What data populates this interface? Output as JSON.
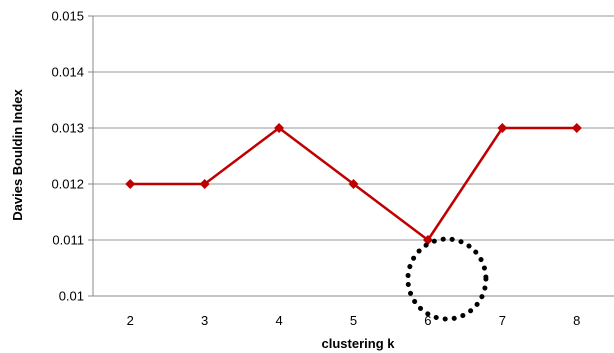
{
  "chart_data": {
    "type": "line",
    "title": "",
    "xlabel": "clustering k",
    "ylabel": "Davies Bouldin Index",
    "categories": [
      "2",
      "3",
      "4",
      "5",
      "6",
      "7",
      "8"
    ],
    "series": [
      {
        "values": [
          0.012,
          0.012,
          0.013,
          0.012,
          0.011,
          0.013,
          0.013
        ],
        "color": "#c00000"
      }
    ],
    "ylim": [
      0.01,
      0.015
    ],
    "yticks": [
      "0.01",
      "0.011",
      "0.012",
      "0.013",
      "0.014",
      "0.015"
    ],
    "grid": true,
    "legend": "none",
    "annotation": {
      "shape": "dotted-circle",
      "near_category": "6",
      "color": "#000000"
    }
  }
}
